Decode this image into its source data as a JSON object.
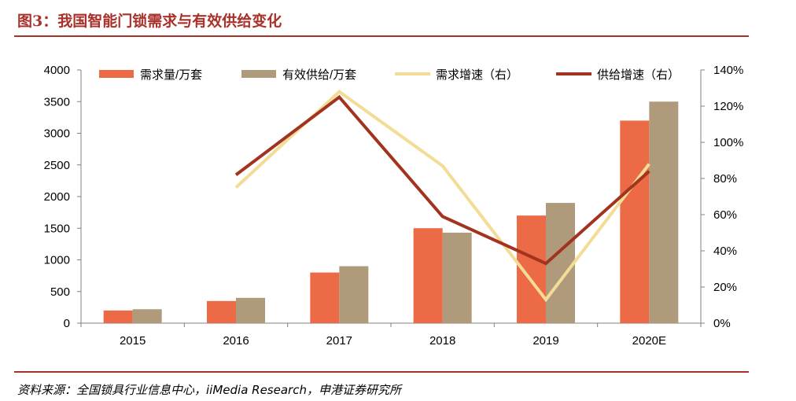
{
  "figure": {
    "title": "图3：我国智能门锁需求与有效供给变化",
    "source": "资料来源：全国锁具行业信息中心，iiMedia Research，申港证券研究所"
  },
  "colors": {
    "title_red": "#a8322a",
    "demand_bar": "#ec6a45",
    "supply_bar": "#b09a7c",
    "demand_growth_line": "#f3dc95",
    "supply_growth_line": "#a2341f"
  },
  "chart_data": {
    "type": "bar",
    "title": "",
    "categories": [
      "2015",
      "2016",
      "2017",
      "2018",
      "2019",
      "2020E"
    ],
    "y_left": {
      "min": 0,
      "max": 4000,
      "ticks": [
        "0",
        "500",
        "1000",
        "1500",
        "2000",
        "2500",
        "3000",
        "3500",
        "4000"
      ]
    },
    "y_right": {
      "min": 0,
      "max": 140,
      "ticks": [
        "0%",
        "20%",
        "40%",
        "60%",
        "80%",
        "100%",
        "120%",
        "140%"
      ]
    },
    "series": [
      {
        "name": "需求量/万套",
        "kind": "bar",
        "axis": "left",
        "values": [
          200,
          350,
          800,
          1500,
          1700,
          3200
        ]
      },
      {
        "name": "有效供给/万套",
        "kind": "bar",
        "axis": "left",
        "values": [
          220,
          400,
          900,
          1430,
          1900,
          3500
        ]
      },
      {
        "name": "需求增速（右）",
        "kind": "line",
        "axis": "right",
        "values": [
          null,
          75,
          128,
          87,
          13,
          88
        ]
      },
      {
        "name": "供给增速（右）",
        "kind": "line",
        "axis": "right",
        "values": [
          null,
          82,
          125,
          59,
          33,
          84
        ]
      }
    ],
    "legend_position": "top",
    "grid": false
  }
}
